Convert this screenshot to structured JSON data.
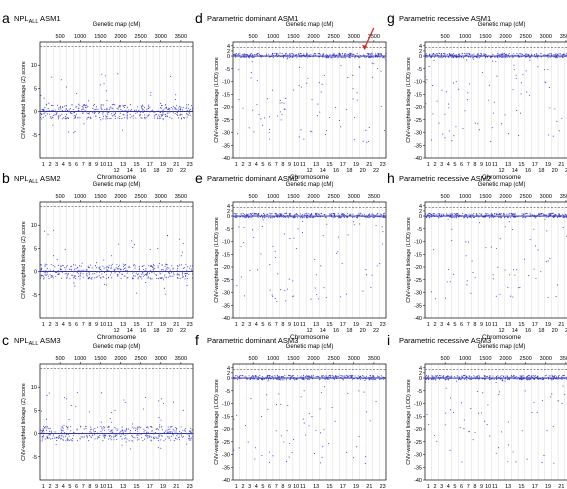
{
  "figure": {
    "genetic_map_label": "Genetic map (cM)",
    "chromosome_label": "Chromosome",
    "genetic_map_ticks": [
      500,
      1000,
      1500,
      2000,
      2500,
      3000,
      3500
    ],
    "chromosome_ticks_top": [
      "1",
      "2",
      "3",
      "4",
      "5",
      "6",
      "7",
      "8",
      "9",
      "10",
      "11",
      "13",
      "15",
      "17",
      "19",
      "21",
      "23"
    ],
    "chromosome_ticks_bottom": [
      "12",
      "14",
      "16",
      "18",
      "20",
      "22"
    ],
    "colors": {
      "points": "#3f3fcf",
      "baseline": "#1a1a8a",
      "axis": "#000000",
      "gridline": "#d0d0d0",
      "arrow": "#e02020"
    }
  },
  "chart_data": [
    {
      "type": "scatter",
      "panel_letter": "a",
      "title_main": "NPL",
      "title_sub": "ALL",
      "title_tail": " ASM1",
      "ylabel": "CNV-weighted linkage (Z) score",
      "ylim": [
        -10,
        15
      ],
      "yticks": [
        -5,
        0,
        5,
        10
      ],
      "threshold": 14.0
    },
    {
      "type": "scatter",
      "panel_letter": "d",
      "title_main": "Parametric dominant ASM1",
      "title_sub": "",
      "title_tail": "",
      "ylabel": "CNV-weighted linkage (LOD) score",
      "ylim": [
        -40,
        5.5
      ],
      "yticks": [
        -40,
        -35,
        -30,
        -25,
        -20,
        -15,
        -10,
        -5,
        0,
        2,
        4
      ],
      "threshold": 3.3,
      "annotation": "arrow"
    },
    {
      "type": "scatter",
      "panel_letter": "g",
      "title_main": "Parametric recessive ASM1",
      "title_sub": "",
      "title_tail": "",
      "ylabel": "CNV-weighted linkage (LOD) score",
      "ylim": [
        -40,
        5.5
      ],
      "yticks": [
        -40,
        -35,
        -30,
        -25,
        -20,
        -15,
        -10,
        -5,
        0,
        2,
        4
      ],
      "threshold": 3.3
    },
    {
      "type": "scatter",
      "panel_letter": "b",
      "title_main": "NPL",
      "title_sub": "ALL",
      "title_tail": " ASM2",
      "ylabel": "CNV-weighted linkage (Z) score",
      "ylim": [
        -10,
        15
      ],
      "yticks": [
        -5,
        0,
        5,
        10
      ],
      "threshold": 14.0
    },
    {
      "type": "scatter",
      "panel_letter": "e",
      "title_main": "Parametric dominant ASM2",
      "title_sub": "",
      "title_tail": "",
      "ylabel": "CNV-weighted linkage (LOD) score",
      "ylim": [
        -40,
        5.5
      ],
      "yticks": [
        -40,
        -35,
        -30,
        -25,
        -20,
        -15,
        -10,
        -5,
        0,
        2,
        4
      ],
      "threshold": 3.3
    },
    {
      "type": "scatter",
      "panel_letter": "h",
      "title_main": "Parametric recessive ASM2",
      "title_sub": "",
      "title_tail": "",
      "ylabel": "CNV-weighted linkage (LOD) score",
      "ylim": [
        -40,
        5.5
      ],
      "yticks": [
        -40,
        -35,
        -30,
        -25,
        -20,
        -15,
        -10,
        -5,
        0,
        2,
        4
      ],
      "threshold": 3.3
    },
    {
      "type": "scatter",
      "panel_letter": "c",
      "title_main": "NPL",
      "title_sub": "ALL",
      "title_tail": " ASM3",
      "ylabel": "CNV-weighted linkage (Z) score",
      "ylim": [
        -10,
        15
      ],
      "yticks": [
        -5,
        0,
        5,
        10
      ],
      "threshold": 14.0
    },
    {
      "type": "scatter",
      "panel_letter": "f",
      "title_main": "Parametric dominant ASM3",
      "title_sub": "",
      "title_tail": "",
      "ylabel": "CNV-weighted linkage (LOD) score",
      "ylim": [
        -40,
        5.5
      ],
      "yticks": [
        -40,
        -35,
        -30,
        -25,
        -20,
        -15,
        -10,
        -5,
        0,
        2,
        4
      ],
      "threshold": 3.3
    },
    {
      "type": "scatter",
      "panel_letter": "i",
      "title_main": "Parametric recessive ASM3",
      "title_sub": "",
      "title_tail": "",
      "ylabel": "CNV-weighted linkage (LOD) score",
      "ylim": [
        -40,
        5.5
      ],
      "yticks": [
        -40,
        -35,
        -30,
        -25,
        -20,
        -15,
        -10,
        -5,
        0,
        2,
        4
      ],
      "threshold": 3.3
    }
  ]
}
